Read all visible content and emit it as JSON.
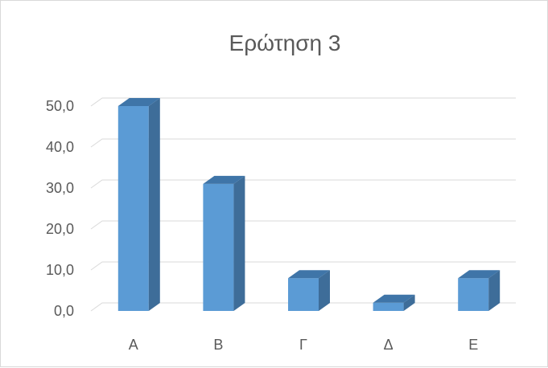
{
  "chart_data": {
    "type": "bar",
    "title": "Ερώτηση 3",
    "categories": [
      "Α",
      "Β",
      "Γ",
      "Δ",
      "Ε"
    ],
    "values": [
      50.0,
      31.0,
      8.0,
      2.0,
      8.0
    ],
    "xlabel": "",
    "ylabel": "",
    "ylim": [
      0,
      50
    ],
    "yticks": [
      "0,0",
      "10,0",
      "20,0",
      "30,0",
      "40,0",
      "50,0"
    ],
    "grid": true,
    "legend": "none",
    "colors": {
      "bar_front": "#5b9bd5",
      "bar_side": "#3e6d99",
      "bar_top": "#3f75a8",
      "grid": "#d9d9d9",
      "text": "#595959"
    }
  }
}
